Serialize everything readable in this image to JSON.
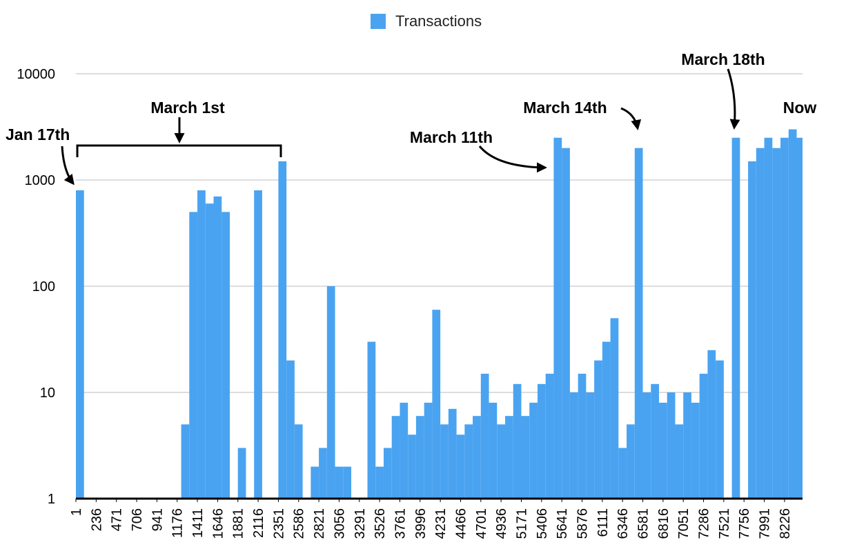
{
  "chart_data": {
    "type": "bar",
    "log_scale": true,
    "grid": true,
    "legend": "top",
    "series": [
      {
        "name": "Transactions",
        "color": "#4aa3f0",
        "x": [
          1,
          95,
          189,
          283,
          377,
          471,
          565,
          659,
          753,
          847,
          941,
          1035,
          1129,
          1223,
          1317,
          1411,
          1505,
          1599,
          1693,
          1787,
          1881,
          1975,
          2069,
          2163,
          2257,
          2351,
          2445,
          2539,
          2633,
          2727,
          2821,
          2915,
          3009,
          3103,
          3197,
          3291,
          3385,
          3479,
          3573,
          3667,
          3761,
          3855,
          3949,
          4043,
          4137,
          4231,
          4325,
          4419,
          4513,
          4607,
          4701,
          4795,
          4889,
          4983,
          5077,
          5171,
          5265,
          5359,
          5453,
          5547,
          5641,
          5735,
          5829,
          5923,
          6017,
          6111,
          6205,
          6299,
          6393,
          6487,
          6581,
          6675,
          6769,
          6863,
          6957,
          7051,
          7145,
          7239,
          7333,
          7427,
          7521,
          7615,
          7709,
          7803,
          7897,
          7991,
          8085,
          8179,
          8273,
          8367
        ],
        "values": [
          800,
          1,
          1,
          1,
          1,
          1,
          1,
          1,
          1,
          1,
          1,
          1,
          1,
          5,
          500,
          800,
          600,
          700,
          500,
          1,
          3,
          1,
          800,
          1,
          1,
          1500,
          20,
          5,
          1,
          2,
          3,
          100,
          2,
          2,
          1,
          1,
          30,
          2,
          3,
          6,
          8,
          4,
          6,
          8,
          60,
          5,
          7,
          4,
          5,
          6,
          15,
          8,
          5,
          6,
          12,
          6,
          8,
          12,
          15,
          2500,
          2000,
          10,
          15,
          10,
          20,
          30,
          50,
          3,
          5,
          2000,
          10,
          12,
          8,
          10,
          5,
          10,
          8,
          15,
          25,
          20,
          1,
          2500,
          1,
          1500,
          2000,
          2500,
          2000,
          2500,
          3000,
          2500
        ]
      }
    ],
    "xlim": [
      1,
      8435
    ],
    "xticks": [
      1,
      236,
      471,
      706,
      941,
      1176,
      1411,
      1646,
      1881,
      2116,
      2351,
      2586,
      2821,
      3056,
      3291,
      3526,
      3761,
      3996,
      4231,
      4466,
      4701,
      4936,
      5171,
      5406,
      5641,
      5876,
      6111,
      6346,
      6581,
      6816,
      7051,
      7286,
      7521,
      7756,
      7991,
      8226
    ],
    "ylim": [
      1,
      10000
    ],
    "yticks": [
      1,
      10,
      100,
      1000,
      10000
    ],
    "annotations": [
      {
        "text": "Jan 17th"
      },
      {
        "text": "March 1st"
      },
      {
        "text": "March 11th"
      },
      {
        "text": "March 14th"
      },
      {
        "text": "March 18th"
      },
      {
        "text": "Now"
      }
    ]
  }
}
